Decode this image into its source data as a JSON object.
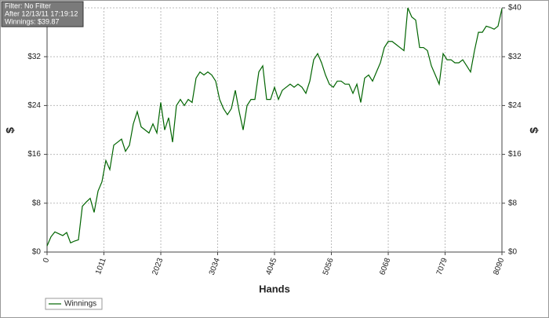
{
  "chart_data": {
    "type": "line",
    "annotations": [
      "Filter: No Filter",
      "After 12/13/11 17:19:12",
      "Winnings: $39.87"
    ],
    "x_label": "Hands",
    "y_label": "$",
    "xlim": [
      0,
      8090
    ],
    "xticks": [
      0,
      1011,
      2023,
      3034,
      4045,
      5056,
      6068,
      7079,
      8090
    ],
    "ylim": [
      0,
      40
    ],
    "yticks": [
      {
        "value": 0,
        "label": "$0"
      },
      {
        "value": 8,
        "label": "$8"
      },
      {
        "value": 16,
        "label": "$16"
      },
      {
        "value": 24,
        "label": "$24"
      },
      {
        "value": 32,
        "label": "$32"
      },
      {
        "value": 40,
        "label": "$40"
      }
    ],
    "grid": true,
    "legend": "bottom-left",
    "series": [
      {
        "name": "Winnings",
        "color": "#006400",
        "x": [
          0,
          70,
          139,
          209,
          279,
          349,
          418,
          488,
          558,
          628,
          697,
          767,
          837,
          907,
          976,
          1046,
          1116,
          1186,
          1255,
          1325,
          1395,
          1465,
          1534,
          1604,
          1674,
          1744,
          1813,
          1883,
          1953,
          2022,
          2092,
          2162,
          2232,
          2301,
          2371,
          2441,
          2511,
          2580,
          2650,
          2720,
          2790,
          2859,
          2929,
          2999,
          3069,
          3138,
          3208,
          3278,
          3348,
          3417,
          3487,
          3557,
          3627,
          3696,
          3766,
          3836,
          3905,
          3975,
          4045,
          4115,
          4184,
          4254,
          4324,
          4394,
          4463,
          4533,
          4603,
          4673,
          4742,
          4812,
          4882,
          4952,
          5021,
          5091,
          5161,
          5231,
          5300,
          5370,
          5440,
          5510,
          5579,
          5649,
          5719,
          5789,
          5858,
          5928,
          5998,
          6068,
          6137,
          6207,
          6277,
          6347,
          6416,
          6486,
          6556,
          6626,
          6695,
          6765,
          6835,
          6905,
          6974,
          7044,
          7114,
          7184,
          7253,
          7323,
          7393,
          7463,
          7532,
          7602,
          7672,
          7742,
          7811,
          7881,
          7951,
          8020,
          8090
        ],
        "values": [
          1,
          2.5,
          3.3,
          3,
          2.7,
          3.2,
          1.5,
          1.8,
          2,
          7.5,
          8.2,
          8.8,
          6.5,
          10,
          11.5,
          15,
          13.5,
          17.5,
          18,
          18.5,
          16.5,
          17.5,
          21,
          23,
          20.5,
          20,
          19.5,
          21,
          19.5,
          24.5,
          20,
          22,
          18,
          24,
          25,
          24,
          25,
          24.5,
          28.5,
          29.5,
          29,
          29.5,
          29,
          28,
          25,
          23.5,
          22.5,
          23.5,
          26.5,
          23,
          20,
          24,
          25,
          25,
          29.5,
          30.5,
          25,
          25,
          27,
          25,
          26.5,
          27,
          27.5,
          27,
          27.5,
          27,
          26,
          28,
          31.5,
          32.5,
          31,
          29,
          27.5,
          27,
          28,
          28,
          27.5,
          27.5,
          26,
          27.5,
          24.5,
          28.5,
          29,
          28,
          29.5,
          31,
          33.5,
          34.5,
          34.5,
          34,
          33.5,
          33,
          40,
          38.5,
          38,
          33.5,
          33.5,
          33,
          30.5,
          29,
          27.5,
          32.5,
          31.5,
          31.5,
          31,
          31,
          31.5,
          30.5,
          29.5,
          33,
          36,
          36,
          37,
          36.8,
          36.5,
          37,
          39.87
        ]
      }
    ]
  }
}
